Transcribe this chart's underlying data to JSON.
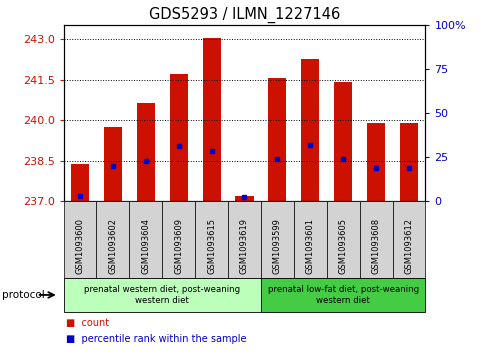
{
  "title": "GDS5293 / ILMN_1227146",
  "samples": [
    "GSM1093600",
    "GSM1093602",
    "GSM1093604",
    "GSM1093609",
    "GSM1093615",
    "GSM1093619",
    "GSM1093599",
    "GSM1093601",
    "GSM1093605",
    "GSM1093608",
    "GSM1093612"
  ],
  "bar_values": [
    238.4,
    239.75,
    240.65,
    241.7,
    243.05,
    237.2,
    241.55,
    242.25,
    241.4,
    239.9,
    239.9
  ],
  "blue_values": [
    237.2,
    238.3,
    238.5,
    239.05,
    238.85,
    237.15,
    238.55,
    239.1,
    238.55,
    238.25,
    238.25
  ],
  "bar_bottom": 237.0,
  "ylim_left": [
    237.0,
    243.5
  ],
  "yticks_left": [
    237,
    238.5,
    240,
    241.5,
    243
  ],
  "ylim_right": [
    0,
    100
  ],
  "yticks_right": [
    0,
    25,
    50,
    75,
    100
  ],
  "yticklabels_right": [
    "0",
    "25",
    "50",
    "75",
    "100%"
  ],
  "bar_color": "#cc1100",
  "blue_color": "#0000cc",
  "grid_color": "#000000",
  "group1_n": 6,
  "group2_n": 5,
  "group1_label": "prenatal western diet, post-weaning\nwestern diet",
  "group2_label": "prenatal low-fat diet, post-weaning\nwestern diet",
  "group1_color": "#bbffbb",
  "group2_color": "#44cc44",
  "protocol_label": "protocol",
  "legend_count_label": "count",
  "legend_pct_label": "percentile rank within the sample",
  "left_tick_color": "#cc1100",
  "right_tick_color": "#0000cc",
  "bar_width": 0.55,
  "cell_bg": "#d3d3d3"
}
